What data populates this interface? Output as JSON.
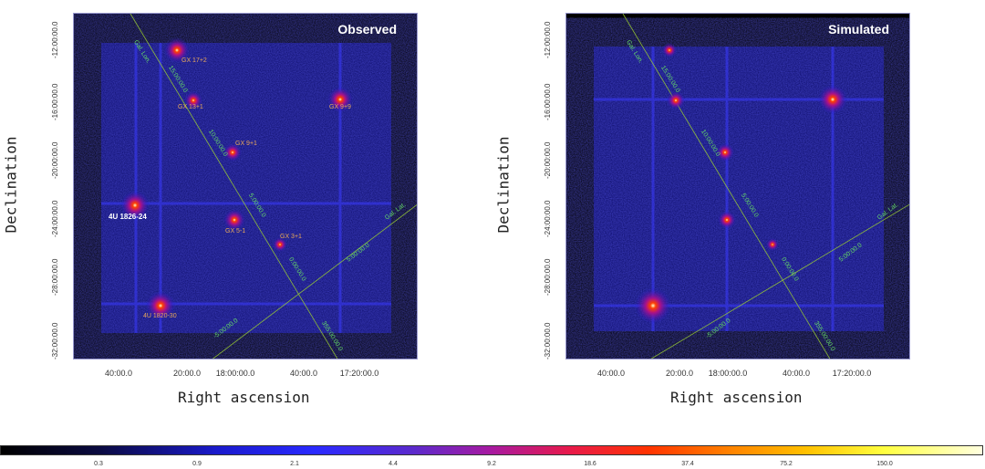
{
  "panels": [
    {
      "title": "Observed",
      "xlabel": "Right ascension",
      "ylabel": "Declination",
      "xticks": [
        "40:00.0",
        "20:00.0",
        "18:00:00.0",
        "40:00.0",
        "17:20:00.0"
      ],
      "yticks": [
        "-12:00:00.0",
        "-16:00:00.0",
        "-20:00:00.0",
        "-24:00:00.0",
        "-28:00:00.0",
        "-32:00:00.0"
      ],
      "sources": [
        "GX 17+2",
        "GX 13+1",
        "GX 9+9",
        "GX 9+1",
        "4U 1826-24",
        "GX 5-1",
        "GX 3+1",
        "4U 1820-30"
      ],
      "grid_labels": [
        "Gal. Lon.",
        "15:00:00.0",
        "10:00:00.0",
        "5:00:00.0",
        "0:00:00.0",
        "355:00:00.0",
        "Gal. Lat.",
        "5:00:00.0",
        "-5:00:00.0"
      ]
    },
    {
      "title": "Simulated",
      "xlabel": "Right ascension",
      "ylabel": "Declination",
      "xticks": [
        "40:00.0",
        "20:00.0",
        "18:00:00.0",
        "40:00.0",
        "17:20:00.0"
      ],
      "yticks": [
        "-12:00:00.0",
        "-16:00:00.0",
        "-20:00:00.0",
        "-24:00:00.0",
        "-28:00:00.0",
        "-32:00:00.0"
      ],
      "grid_labels": [
        "Gal. Lon.",
        "15:00:00.0",
        "10:00:00.0",
        "5:00:00.0",
        "0:00:00.0",
        "355:00:00.0",
        "Gal. Lat.",
        "5:00:00.0",
        "-5:00:00.0"
      ]
    }
  ],
  "colorbar": {
    "ticks": [
      "0.3",
      "0.9",
      "2.1",
      "4.4",
      "9.2",
      "18.6",
      "37.4",
      "75.2",
      "150.0"
    ]
  },
  "colors": {
    "background": "#000000",
    "field": "#0b0b66",
    "grid_line": "#9acd32",
    "grid_text": "#66dd66",
    "source_label": "#e8a75a"
  }
}
